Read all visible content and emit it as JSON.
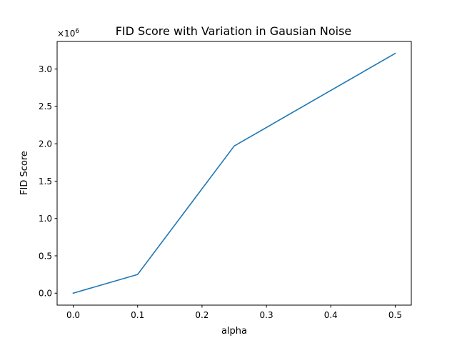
{
  "chart_data": {
    "type": "line",
    "title": "FID Score with Variation in Gausian Noise",
    "xlabel": "alpha",
    "ylabel": "FID Score",
    "y_offset_text": {
      "base": "×10",
      "exponent": "6"
    },
    "xlim": [
      -0.025,
      0.525
    ],
    "ylim": [
      -0.16,
      3.37
    ],
    "x_ticks": [
      0.0,
      0.1,
      0.2,
      0.3,
      0.4,
      0.5
    ],
    "x_tick_labels": [
      "0.0",
      "0.1",
      "0.2",
      "0.3",
      "0.4",
      "0.5"
    ],
    "y_ticks": [
      0.0,
      0.5,
      1.0,
      1.5,
      2.0,
      2.5,
      3.0
    ],
    "y_tick_labels": [
      "0.0",
      "0.5",
      "1.0",
      "1.5",
      "2.0",
      "2.5",
      "3.0"
    ],
    "grid": false,
    "series": [
      {
        "color": "#1f77b4",
        "x": [
          0.0,
          0.1,
          0.25,
          0.5
        ],
        "y": [
          0.0,
          0.25,
          1.97,
          3.21
        ]
      }
    ]
  }
}
